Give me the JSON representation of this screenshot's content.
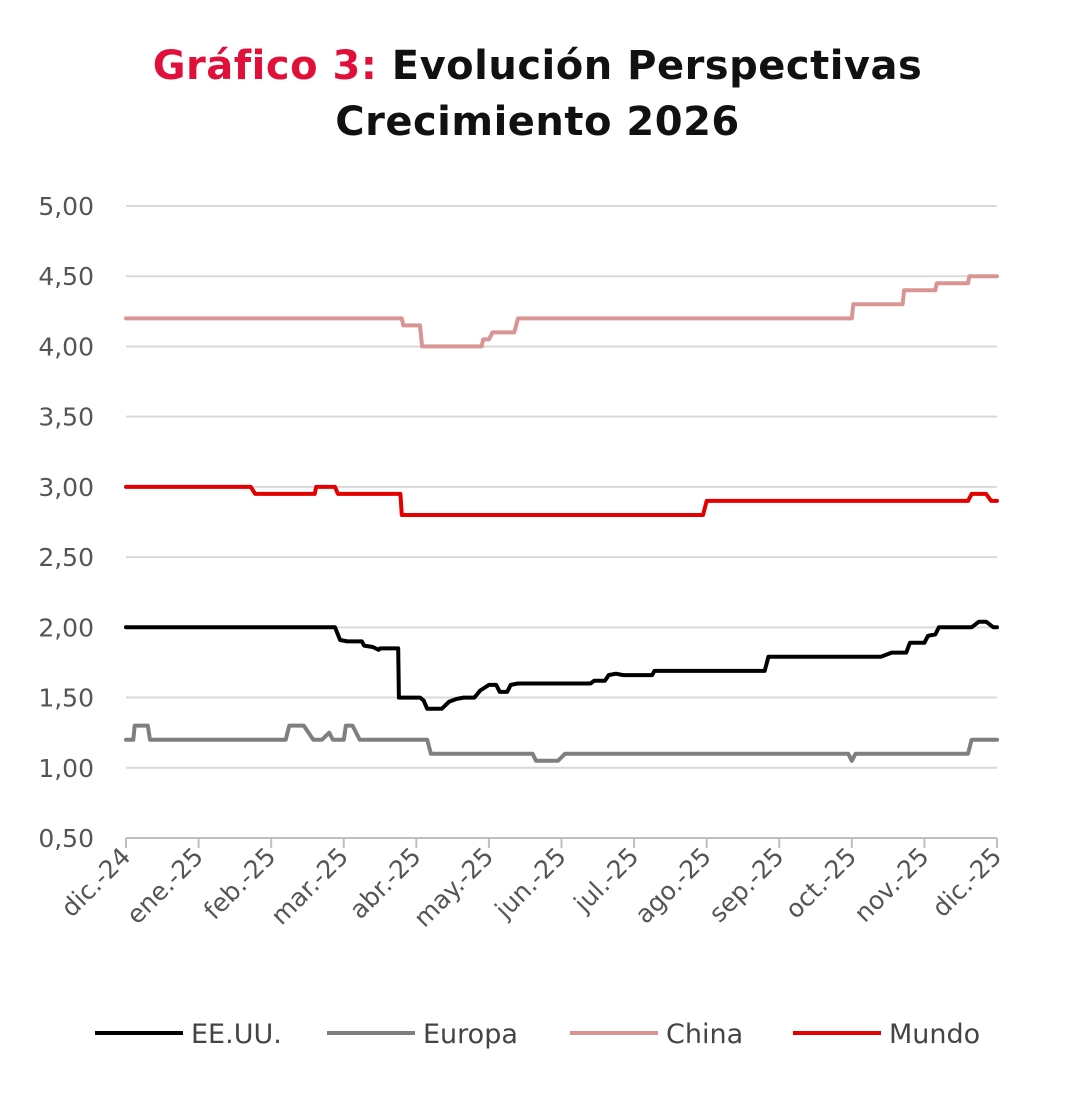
{
  "title": {
    "prefix": "Gráfico 3:",
    "line1": "Evolución Perspectivas",
    "line2": "Crecimiento 2026"
  },
  "chart_data": {
    "type": "line",
    "title": "Gráfico 3: Evolución Perspectivas Crecimiento 2026",
    "xlabel": "",
    "ylabel": "",
    "ylim": [
      0.5,
      5.0
    ],
    "xlim": [
      0,
      12
    ],
    "grid": true,
    "legend_position": "bottom",
    "yticks": [
      0.5,
      1.0,
      1.5,
      2.0,
      2.5,
      3.0,
      3.5,
      4.0,
      4.5,
      5.0
    ],
    "ytick_labels": [
      "0,50",
      "1,00",
      "1,50",
      "2,00",
      "2,50",
      "3,00",
      "3,50",
      "4,00",
      "4,50",
      "5,00"
    ],
    "xtick_labels": [
      "dic.-24",
      "ene.-25",
      "feb.-25",
      "mar.-25",
      "abr.-25",
      "may.-25",
      "jun.-25",
      "jul.-25",
      "ago.-25",
      "sep.-25",
      "oct.-25",
      "nov.-25",
      "dic.-25"
    ],
    "series": [
      {
        "name": "EE.UU.",
        "color": "#000000",
        "points": [
          [
            0,
            2.0
          ],
          [
            2.88,
            2.0
          ],
          [
            2.95,
            1.91
          ],
          [
            3.05,
            1.9
          ],
          [
            3.25,
            1.9
          ],
          [
            3.28,
            1.87
          ],
          [
            3.4,
            1.86
          ],
          [
            3.48,
            1.84
          ],
          [
            3.5,
            1.85
          ],
          [
            3.6,
            1.85
          ],
          [
            3.75,
            1.85
          ],
          [
            3.76,
            1.5
          ],
          [
            4.05,
            1.5
          ],
          [
            4.1,
            1.48
          ],
          [
            4.15,
            1.42
          ],
          [
            4.35,
            1.42
          ],
          [
            4.45,
            1.47
          ],
          [
            4.55,
            1.49
          ],
          [
            4.65,
            1.5
          ],
          [
            4.8,
            1.5
          ],
          [
            4.88,
            1.55
          ],
          [
            5.0,
            1.59
          ],
          [
            5.1,
            1.59
          ],
          [
            5.15,
            1.54
          ],
          [
            5.25,
            1.54
          ],
          [
            5.3,
            1.59
          ],
          [
            5.4,
            1.6
          ],
          [
            6.2,
            1.6
          ],
          [
            6.25,
            1.6
          ],
          [
            6.4,
            1.6
          ],
          [
            6.45,
            1.62
          ],
          [
            6.6,
            1.62
          ],
          [
            6.65,
            1.66
          ],
          [
            6.75,
            1.67
          ],
          [
            6.85,
            1.66
          ],
          [
            7.25,
            1.66
          ],
          [
            7.28,
            1.69
          ],
          [
            8.8,
            1.69
          ],
          [
            8.85,
            1.79
          ],
          [
            10.4,
            1.79
          ],
          [
            10.45,
            1.8
          ],
          [
            10.55,
            1.82
          ],
          [
            10.75,
            1.82
          ],
          [
            10.8,
            1.89
          ],
          [
            11.0,
            1.89
          ],
          [
            11.05,
            1.94
          ],
          [
            11.15,
            1.95
          ],
          [
            11.2,
            2.0
          ],
          [
            11.65,
            2.0
          ],
          [
            11.75,
            2.04
          ],
          [
            11.85,
            2.04
          ],
          [
            11.95,
            2.0
          ],
          [
            12.0,
            2.0
          ]
        ]
      },
      {
        "name": "Europa",
        "color": "#7f7f7f",
        "points": [
          [
            0,
            1.2
          ],
          [
            0.1,
            1.2
          ],
          [
            0.12,
            1.3
          ],
          [
            0.3,
            1.3
          ],
          [
            0.33,
            1.2
          ],
          [
            2.2,
            1.2
          ],
          [
            2.25,
            1.3
          ],
          [
            2.45,
            1.3
          ],
          [
            2.58,
            1.2
          ],
          [
            2.7,
            1.2
          ],
          [
            2.8,
            1.25
          ],
          [
            2.85,
            1.2
          ],
          [
            3.0,
            1.2
          ],
          [
            3.03,
            1.3
          ],
          [
            3.12,
            1.3
          ],
          [
            3.22,
            1.2
          ],
          [
            4.15,
            1.2
          ],
          [
            4.2,
            1.1
          ],
          [
            5.6,
            1.1
          ],
          [
            5.65,
            1.05
          ],
          [
            5.95,
            1.05
          ],
          [
            6.05,
            1.1
          ],
          [
            9.95,
            1.1
          ],
          [
            10.0,
            1.05
          ],
          [
            10.05,
            1.1
          ],
          [
            11.6,
            1.1
          ],
          [
            11.65,
            1.2
          ],
          [
            12.0,
            1.2
          ]
        ]
      },
      {
        "name": "China",
        "color": "#d99594",
        "points": [
          [
            0,
            4.2
          ],
          [
            3.8,
            4.2
          ],
          [
            3.82,
            4.15
          ],
          [
            4.05,
            4.15
          ],
          [
            4.08,
            4.0
          ],
          [
            4.9,
            4.0
          ],
          [
            4.92,
            4.05
          ],
          [
            5.0,
            4.05
          ],
          [
            5.05,
            4.1
          ],
          [
            5.35,
            4.1
          ],
          [
            5.4,
            4.2
          ],
          [
            10.0,
            4.2
          ],
          [
            10.02,
            4.3
          ],
          [
            10.7,
            4.3
          ],
          [
            10.72,
            4.4
          ],
          [
            11.15,
            4.4
          ],
          [
            11.17,
            4.45
          ],
          [
            11.6,
            4.45
          ],
          [
            11.62,
            4.5
          ],
          [
            12.0,
            4.5
          ]
        ]
      },
      {
        "name": "Mundo",
        "color": "#e50000",
        "points": [
          [
            0,
            3.0
          ],
          [
            1.72,
            3.0
          ],
          [
            1.78,
            2.95
          ],
          [
            2.6,
            2.95
          ],
          [
            2.62,
            3.0
          ],
          [
            2.88,
            3.0
          ],
          [
            2.92,
            2.95
          ],
          [
            3.78,
            2.95
          ],
          [
            3.8,
            2.8
          ],
          [
            7.95,
            2.8
          ],
          [
            8.0,
            2.9
          ],
          [
            11.6,
            2.9
          ],
          [
            11.65,
            2.95
          ],
          [
            11.85,
            2.95
          ],
          [
            11.92,
            2.9
          ],
          [
            12.0,
            2.9
          ]
        ]
      }
    ]
  }
}
